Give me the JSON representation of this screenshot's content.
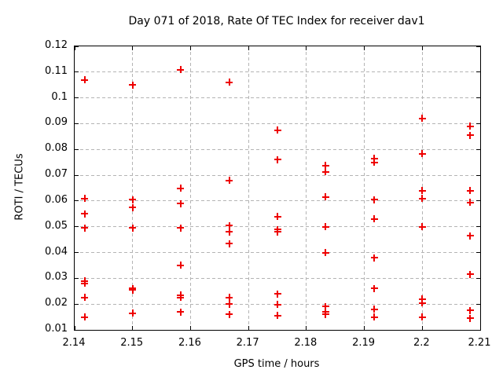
{
  "window": {
    "title": "Day 071 of 2018, Rate Of TEC Index for receiver dav1"
  },
  "chart_data": {
    "type": "scatter",
    "title": "Day 071 of 2018, Rate Of TEC Index for receiver dav1",
    "xlabel": "GPS time / hours",
    "ylabel": "ROTI / TECUs",
    "xlim": [
      2.14,
      2.21
    ],
    "ylim": [
      0.01,
      0.12
    ],
    "x_ticks": [
      2.14,
      2.15,
      2.16,
      2.17,
      2.18,
      2.19,
      2.2,
      2.21
    ],
    "x_tick_labels": [
      "2.14",
      "2.15",
      "2.16",
      "2.17",
      "2.18",
      "2.19",
      "2.2",
      "2.21"
    ],
    "y_ticks": [
      0.01,
      0.02,
      0.03,
      0.04,
      0.05,
      0.06,
      0.07,
      0.08,
      0.09,
      0.1,
      0.11,
      0.12
    ],
    "y_tick_labels": [
      "0.01",
      "0.02",
      "0.03",
      "0.04",
      "0.05",
      "0.06",
      "0.07",
      "0.08",
      "0.09",
      "0.1",
      "0.11",
      "0.12"
    ],
    "grid": true,
    "legend": "none",
    "marker": "plus",
    "marker_color": "#ee0000",
    "series": [
      {
        "name": "ROTI",
        "points": [
          [
            2.1417,
            0.107
          ],
          [
            2.1417,
            0.061
          ],
          [
            2.1417,
            0.055
          ],
          [
            2.1417,
            0.0495
          ],
          [
            2.1417,
            0.029
          ],
          [
            2.1417,
            0.028
          ],
          [
            2.1417,
            0.0225
          ],
          [
            2.1417,
            0.015
          ],
          [
            2.15,
            0.105
          ],
          [
            2.15,
            0.0605
          ],
          [
            2.15,
            0.0575
          ],
          [
            2.15,
            0.0495
          ],
          [
            2.15,
            0.026
          ],
          [
            2.15,
            0.0255
          ],
          [
            2.15,
            0.0165
          ],
          [
            2.1583,
            0.111
          ],
          [
            2.1583,
            0.065
          ],
          [
            2.1583,
            0.059
          ],
          [
            2.1583,
            0.0495
          ],
          [
            2.1583,
            0.035
          ],
          [
            2.1583,
            0.0235
          ],
          [
            2.1583,
            0.0225
          ],
          [
            2.1583,
            0.017
          ],
          [
            2.1667,
            0.106
          ],
          [
            2.1667,
            0.068
          ],
          [
            2.1667,
            0.0505
          ],
          [
            2.1667,
            0.048
          ],
          [
            2.1667,
            0.0435
          ],
          [
            2.1667,
            0.0225
          ],
          [
            2.1667,
            0.02
          ],
          [
            2.1667,
            0.016
          ],
          [
            2.175,
            0.0875
          ],
          [
            2.175,
            0.076
          ],
          [
            2.175,
            0.054
          ],
          [
            2.175,
            0.049
          ],
          [
            2.175,
            0.048
          ],
          [
            2.175,
            0.024
          ],
          [
            2.175,
            0.0198
          ],
          [
            2.175,
            0.0155
          ],
          [
            2.1833,
            0.0738
          ],
          [
            2.1833,
            0.0713
          ],
          [
            2.1833,
            0.0615
          ],
          [
            2.1833,
            0.05
          ],
          [
            2.1833,
            0.04
          ],
          [
            2.1833,
            0.019
          ],
          [
            2.1833,
            0.017
          ],
          [
            2.1833,
            0.016
          ],
          [
            2.1917,
            0.0765
          ],
          [
            2.1917,
            0.075
          ],
          [
            2.1917,
            0.0605
          ],
          [
            2.1917,
            0.053
          ],
          [
            2.1917,
            0.038
          ],
          [
            2.1917,
            0.026
          ],
          [
            2.1917,
            0.018
          ],
          [
            2.1917,
            0.015
          ],
          [
            2.2,
            0.092
          ],
          [
            2.2,
            0.0783
          ],
          [
            2.2,
            0.064
          ],
          [
            2.2,
            0.061
          ],
          [
            2.2,
            0.05
          ],
          [
            2.2,
            0.022
          ],
          [
            2.2,
            0.0205
          ],
          [
            2.2,
            0.015
          ],
          [
            2.2083,
            0.089
          ],
          [
            2.2083,
            0.0855
          ],
          [
            2.2083,
            0.064
          ],
          [
            2.2083,
            0.0595
          ],
          [
            2.2083,
            0.0465
          ],
          [
            2.2083,
            0.0315
          ],
          [
            2.2083,
            0.0175
          ],
          [
            2.2083,
            0.0145
          ]
        ]
      }
    ]
  }
}
